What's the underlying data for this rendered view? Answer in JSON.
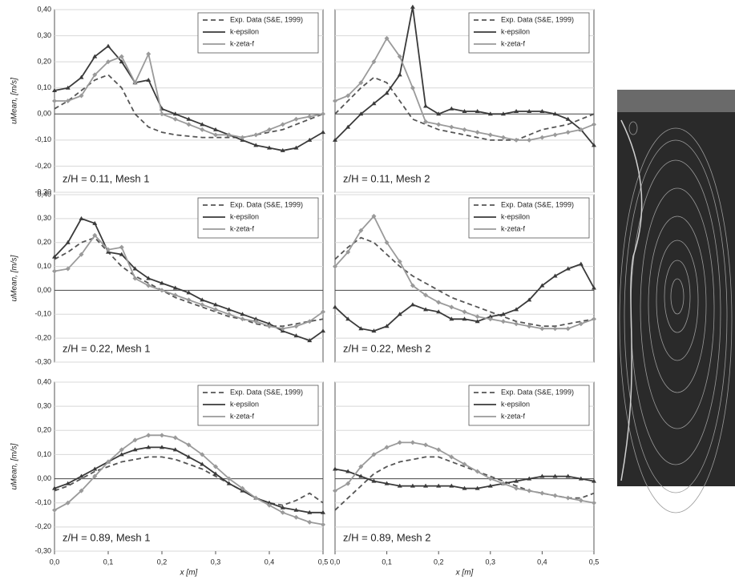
{
  "chart_data": [
    {
      "type": "line",
      "annotation": "z/H = 0.11, Mesh 1",
      "ylabel": "uMean, [m/s]",
      "legend": "upper right",
      "x": [
        0,
        0.025,
        0.05,
        0.075,
        0.1,
        0.125,
        0.15,
        0.175,
        0.2,
        0.225,
        0.25,
        0.275,
        0.3,
        0.325,
        0.35,
        0.375,
        0.4,
        0.425,
        0.45,
        0.475,
        0.5
      ],
      "xlim": [
        0,
        0.5
      ],
      "ylim": [
        -0.3,
        0.4
      ],
      "yticks": [
        {
          "value": -0.3,
          "label": "-0,30"
        },
        {
          "value": -0.2,
          "label": "-0,20"
        },
        {
          "value": -0.1,
          "label": "-0,10"
        },
        {
          "value": 0,
          "label": "0,00"
        },
        {
          "value": 0.1,
          "label": "0,10"
        },
        {
          "value": 0.2,
          "label": "0,20"
        },
        {
          "value": 0.3,
          "label": "0,30"
        },
        {
          "value": 0.4,
          "label": "0,40"
        }
      ],
      "series": [
        {
          "name": "Exp. Data (S&E, 1999)",
          "color": "#555555",
          "style": "dashed",
          "marker": "none",
          "values": [
            0.02,
            0.05,
            0.09,
            0.13,
            0.15,
            0.1,
            0.0,
            -0.05,
            -0.07,
            -0.08,
            -0.085,
            -0.09,
            -0.09,
            -0.09,
            -0.09,
            -0.08,
            -0.07,
            -0.06,
            -0.04,
            -0.02,
            0.0
          ]
        },
        {
          "name": "k-epsilon",
          "color": "#3a3a3a",
          "style": "solid",
          "marker": "triangle",
          "values": [
            0.09,
            0.1,
            0.14,
            0.22,
            0.26,
            0.2,
            0.12,
            0.13,
            0.02,
            0.0,
            -0.02,
            -0.04,
            -0.06,
            -0.08,
            -0.1,
            -0.12,
            -0.13,
            -0.14,
            -0.13,
            -0.1,
            -0.07
          ]
        },
        {
          "name": "k-zeta-f",
          "color": "#9a9a9a",
          "style": "solid",
          "marker": "diamond",
          "values": [
            0.05,
            0.05,
            0.07,
            0.15,
            0.2,
            0.22,
            0.12,
            0.23,
            0.0,
            -0.02,
            -0.04,
            -0.06,
            -0.08,
            -0.08,
            -0.09,
            -0.08,
            -0.06,
            -0.04,
            -0.02,
            -0.01,
            0.0
          ]
        }
      ]
    },
    {
      "type": "line",
      "annotation": "z/H = 0.11, Mesh 2",
      "legend": "upper right",
      "x": [
        0,
        0.025,
        0.05,
        0.075,
        0.1,
        0.125,
        0.15,
        0.175,
        0.2,
        0.225,
        0.25,
        0.275,
        0.3,
        0.325,
        0.35,
        0.375,
        0.4,
        0.425,
        0.45,
        0.475,
        0.5
      ],
      "xlim": [
        0,
        0.5
      ],
      "ylim": [
        -0.3,
        0.4
      ],
      "yticks": [
        -0.3,
        -0.2,
        -0.1,
        0,
        0.1,
        0.2,
        0.3,
        0.4
      ],
      "series": [
        {
          "name": "Exp. Data (S&E, 1999)",
          "color": "#555555",
          "style": "dashed",
          "marker": "none",
          "values": [
            0.0,
            0.05,
            0.1,
            0.14,
            0.12,
            0.05,
            -0.02,
            -0.04,
            -0.06,
            -0.07,
            -0.08,
            -0.09,
            -0.1,
            -0.1,
            -0.1,
            -0.08,
            -0.06,
            -0.05,
            -0.04,
            -0.02,
            0.0
          ]
        },
        {
          "name": "k-epsilon",
          "color": "#3a3a3a",
          "style": "solid",
          "marker": "triangle",
          "values": [
            -0.1,
            -0.05,
            0.0,
            0.04,
            0.08,
            0.15,
            0.41,
            0.03,
            0.0,
            0.02,
            0.01,
            0.01,
            0.0,
            0.0,
            0.01,
            0.01,
            0.01,
            0.0,
            -0.02,
            -0.06,
            -0.12
          ]
        },
        {
          "name": "k-zeta-f",
          "color": "#9a9a9a",
          "style": "solid",
          "marker": "diamond",
          "values": [
            0.05,
            0.07,
            0.12,
            0.2,
            0.29,
            0.22,
            0.1,
            -0.03,
            -0.04,
            -0.05,
            -0.06,
            -0.07,
            -0.08,
            -0.09,
            -0.1,
            -0.1,
            -0.09,
            -0.08,
            -0.07,
            -0.06,
            -0.04
          ]
        }
      ]
    },
    {
      "type": "line",
      "annotation": "z/H = 0.22, Mesh 1",
      "ylabel": "uMean, [m/s]",
      "legend": "upper right",
      "x": [
        0,
        0.025,
        0.05,
        0.075,
        0.1,
        0.125,
        0.15,
        0.175,
        0.2,
        0.225,
        0.25,
        0.275,
        0.3,
        0.325,
        0.35,
        0.375,
        0.4,
        0.425,
        0.45,
        0.475,
        0.5
      ],
      "xlim": [
        0,
        0.5
      ],
      "ylim": [
        -0.3,
        0.4
      ],
      "yticks": [
        {
          "value": -0.3,
          "label": "-0,30"
        },
        {
          "value": -0.2,
          "label": "-0,20"
        },
        {
          "value": -0.1,
          "label": "-0,10"
        },
        {
          "value": 0,
          "label": "0,00"
        },
        {
          "value": 0.1,
          "label": "0,10"
        },
        {
          "value": 0.2,
          "label": "0,20"
        },
        {
          "value": 0.3,
          "label": "0,30"
        },
        {
          "value": 0.4,
          "label": "0,40"
        }
      ],
      "series": [
        {
          "name": "Exp. Data (S&E, 1999)",
          "color": "#555555",
          "style": "dashed",
          "marker": "none",
          "values": [
            0.13,
            0.16,
            0.2,
            0.22,
            0.16,
            0.1,
            0.06,
            0.03,
            0.0,
            -0.03,
            -0.05,
            -0.07,
            -0.09,
            -0.11,
            -0.12,
            -0.14,
            -0.15,
            -0.15,
            -0.14,
            -0.13,
            -0.12
          ]
        },
        {
          "name": "k-epsilon",
          "color": "#3a3a3a",
          "style": "solid",
          "marker": "triangle",
          "values": [
            0.14,
            0.2,
            0.3,
            0.28,
            0.16,
            0.15,
            0.09,
            0.05,
            0.03,
            0.01,
            -0.01,
            -0.04,
            -0.06,
            -0.08,
            -0.1,
            -0.12,
            -0.14,
            -0.17,
            -0.19,
            -0.21,
            -0.17
          ]
        },
        {
          "name": "k-zeta-f",
          "color": "#9a9a9a",
          "style": "solid",
          "marker": "diamond",
          "values": [
            0.08,
            0.09,
            0.15,
            0.23,
            0.17,
            0.18,
            0.05,
            0.02,
            0.0,
            -0.02,
            -0.04,
            -0.06,
            -0.08,
            -0.1,
            -0.12,
            -0.13,
            -0.15,
            -0.16,
            -0.15,
            -0.13,
            -0.09
          ]
        }
      ]
    },
    {
      "type": "line",
      "annotation": "z/H = 0.22, Mesh 2",
      "legend": "upper right",
      "x": [
        0,
        0.025,
        0.05,
        0.075,
        0.1,
        0.125,
        0.15,
        0.175,
        0.2,
        0.225,
        0.25,
        0.275,
        0.3,
        0.325,
        0.35,
        0.375,
        0.4,
        0.425,
        0.45,
        0.475,
        0.5
      ],
      "xlim": [
        0,
        0.5
      ],
      "ylim": [
        -0.3,
        0.4
      ],
      "yticks": [
        -0.3,
        -0.2,
        -0.1,
        0,
        0.1,
        0.2,
        0.3,
        0.4
      ],
      "series": [
        {
          "name": "Exp. Data (S&E, 1999)",
          "color": "#555555",
          "style": "dashed",
          "marker": "none",
          "values": [
            0.13,
            0.18,
            0.22,
            0.2,
            0.15,
            0.1,
            0.06,
            0.03,
            0.0,
            -0.03,
            -0.05,
            -0.07,
            -0.09,
            -0.11,
            -0.13,
            -0.14,
            -0.15,
            -0.15,
            -0.14,
            -0.13,
            -0.12
          ]
        },
        {
          "name": "k-epsilon",
          "color": "#3a3a3a",
          "style": "solid",
          "marker": "triangle",
          "values": [
            -0.07,
            -0.12,
            -0.16,
            -0.17,
            -0.15,
            -0.1,
            -0.06,
            -0.08,
            -0.09,
            -0.12,
            -0.12,
            -0.13,
            -0.11,
            -0.1,
            -0.08,
            -0.04,
            0.02,
            0.06,
            0.09,
            0.11,
            0.01
          ]
        },
        {
          "name": "k-zeta-f",
          "color": "#9a9a9a",
          "style": "solid",
          "marker": "diamond",
          "values": [
            0.1,
            0.16,
            0.25,
            0.31,
            0.2,
            0.12,
            0.02,
            -0.02,
            -0.05,
            -0.07,
            -0.09,
            -0.11,
            -0.12,
            -0.13,
            -0.14,
            -0.15,
            -0.16,
            -0.16,
            -0.16,
            -0.14,
            -0.12
          ]
        }
      ]
    },
    {
      "type": "line",
      "annotation": "z/H = 0.89, Mesh 1",
      "ylabel": "uMean, [m/s]",
      "xlabel": "x [m]",
      "legend": "upper right",
      "x": [
        0,
        0.025,
        0.05,
        0.075,
        0.1,
        0.125,
        0.15,
        0.175,
        0.2,
        0.225,
        0.25,
        0.275,
        0.3,
        0.325,
        0.35,
        0.375,
        0.4,
        0.425,
        0.45,
        0.475,
        0.5
      ],
      "xlim": [
        0,
        0.5
      ],
      "ylim": [
        -0.3,
        0.4
      ],
      "yticks": [
        {
          "value": -0.3,
          "label": "-0,30"
        },
        {
          "value": -0.2,
          "label": "-0,20"
        },
        {
          "value": -0.1,
          "label": "-0,10"
        },
        {
          "value": 0,
          "label": "0,00"
        },
        {
          "value": 0.1,
          "label": "0,10"
        },
        {
          "value": 0.2,
          "label": "0,20"
        },
        {
          "value": 0.3,
          "label": "0,30"
        },
        {
          "value": 0.4,
          "label": "0,40"
        }
      ],
      "xticks": [
        {
          "value": 0,
          "label": "0,0"
        },
        {
          "value": 0.1,
          "label": "0,1"
        },
        {
          "value": 0.2,
          "label": "0,2"
        },
        {
          "value": 0.3,
          "label": "0,3"
        },
        {
          "value": 0.4,
          "label": "0,4"
        },
        {
          "value": 0.5,
          "label": "0,5"
        }
      ],
      "series": [
        {
          "name": "Exp. Data (S&E, 1999)",
          "color": "#555555",
          "style": "dashed",
          "marker": "none",
          "values": [
            -0.05,
            -0.03,
            0.0,
            0.03,
            0.05,
            0.07,
            0.08,
            0.09,
            0.09,
            0.08,
            0.06,
            0.04,
            0.01,
            -0.02,
            -0.05,
            -0.08,
            -0.1,
            -0.11,
            -0.09,
            -0.06,
            -0.1
          ]
        },
        {
          "name": "k-epsilon",
          "color": "#3a3a3a",
          "style": "solid",
          "marker": "triangle",
          "values": [
            -0.04,
            -0.02,
            0.01,
            0.04,
            0.07,
            0.1,
            0.12,
            0.13,
            0.13,
            0.12,
            0.09,
            0.06,
            0.02,
            -0.02,
            -0.05,
            -0.08,
            -0.1,
            -0.12,
            -0.13,
            -0.14,
            -0.14
          ]
        },
        {
          "name": "k-zeta-f",
          "color": "#9a9a9a",
          "style": "solid",
          "marker": "diamond",
          "values": [
            -0.13,
            -0.1,
            -0.05,
            0.01,
            0.07,
            0.12,
            0.16,
            0.18,
            0.18,
            0.17,
            0.14,
            0.1,
            0.05,
            0.0,
            -0.04,
            -0.08,
            -0.11,
            -0.14,
            -0.16,
            -0.18,
            -0.19
          ]
        }
      ]
    },
    {
      "type": "line",
      "annotation": "z/H = 0.89, Mesh 2",
      "xlabel": "x [m]",
      "legend": "upper right",
      "x": [
        0,
        0.025,
        0.05,
        0.075,
        0.1,
        0.125,
        0.15,
        0.175,
        0.2,
        0.225,
        0.25,
        0.275,
        0.3,
        0.325,
        0.35,
        0.375,
        0.4,
        0.425,
        0.45,
        0.475,
        0.5
      ],
      "xlim": [
        0,
        0.5
      ],
      "ylim": [
        -0.3,
        0.4
      ],
      "yticks": [
        -0.3,
        -0.2,
        -0.1,
        0,
        0.1,
        0.2,
        0.3,
        0.4
      ],
      "xticks": [
        {
          "value": 0,
          "label": "0,0"
        },
        {
          "value": 0.1,
          "label": "0,1"
        },
        {
          "value": 0.2,
          "label": "0,2"
        },
        {
          "value": 0.3,
          "label": "0,3"
        },
        {
          "value": 0.4,
          "label": "0,4"
        },
        {
          "value": 0.5,
          "label": "0,5"
        }
      ],
      "series": [
        {
          "name": "Exp. Data (S&E, 1999)",
          "color": "#555555",
          "style": "dashed",
          "marker": "none",
          "values": [
            -0.13,
            -0.08,
            -0.03,
            0.02,
            0.05,
            0.07,
            0.08,
            0.09,
            0.09,
            0.07,
            0.05,
            0.03,
            0.01,
            -0.01,
            -0.03,
            -0.05,
            -0.06,
            -0.07,
            -0.08,
            -0.08,
            -0.06
          ]
        },
        {
          "name": "k-epsilon",
          "color": "#3a3a3a",
          "style": "solid",
          "marker": "triangle",
          "values": [
            0.04,
            0.03,
            0.01,
            -0.01,
            -0.02,
            -0.03,
            -0.03,
            -0.03,
            -0.03,
            -0.03,
            -0.04,
            -0.04,
            -0.03,
            -0.02,
            -0.01,
            0.0,
            0.01,
            0.01,
            0.01,
            0.0,
            -0.01
          ]
        },
        {
          "name": "k-zeta-f",
          "color": "#9a9a9a",
          "style": "solid",
          "marker": "diamond",
          "values": [
            -0.05,
            -0.02,
            0.05,
            0.1,
            0.13,
            0.15,
            0.15,
            0.14,
            0.12,
            0.09,
            0.06,
            0.03,
            0.0,
            -0.02,
            -0.04,
            -0.05,
            -0.06,
            -0.07,
            -0.08,
            -0.09,
            -0.1
          ]
        }
      ]
    }
  ]
}
